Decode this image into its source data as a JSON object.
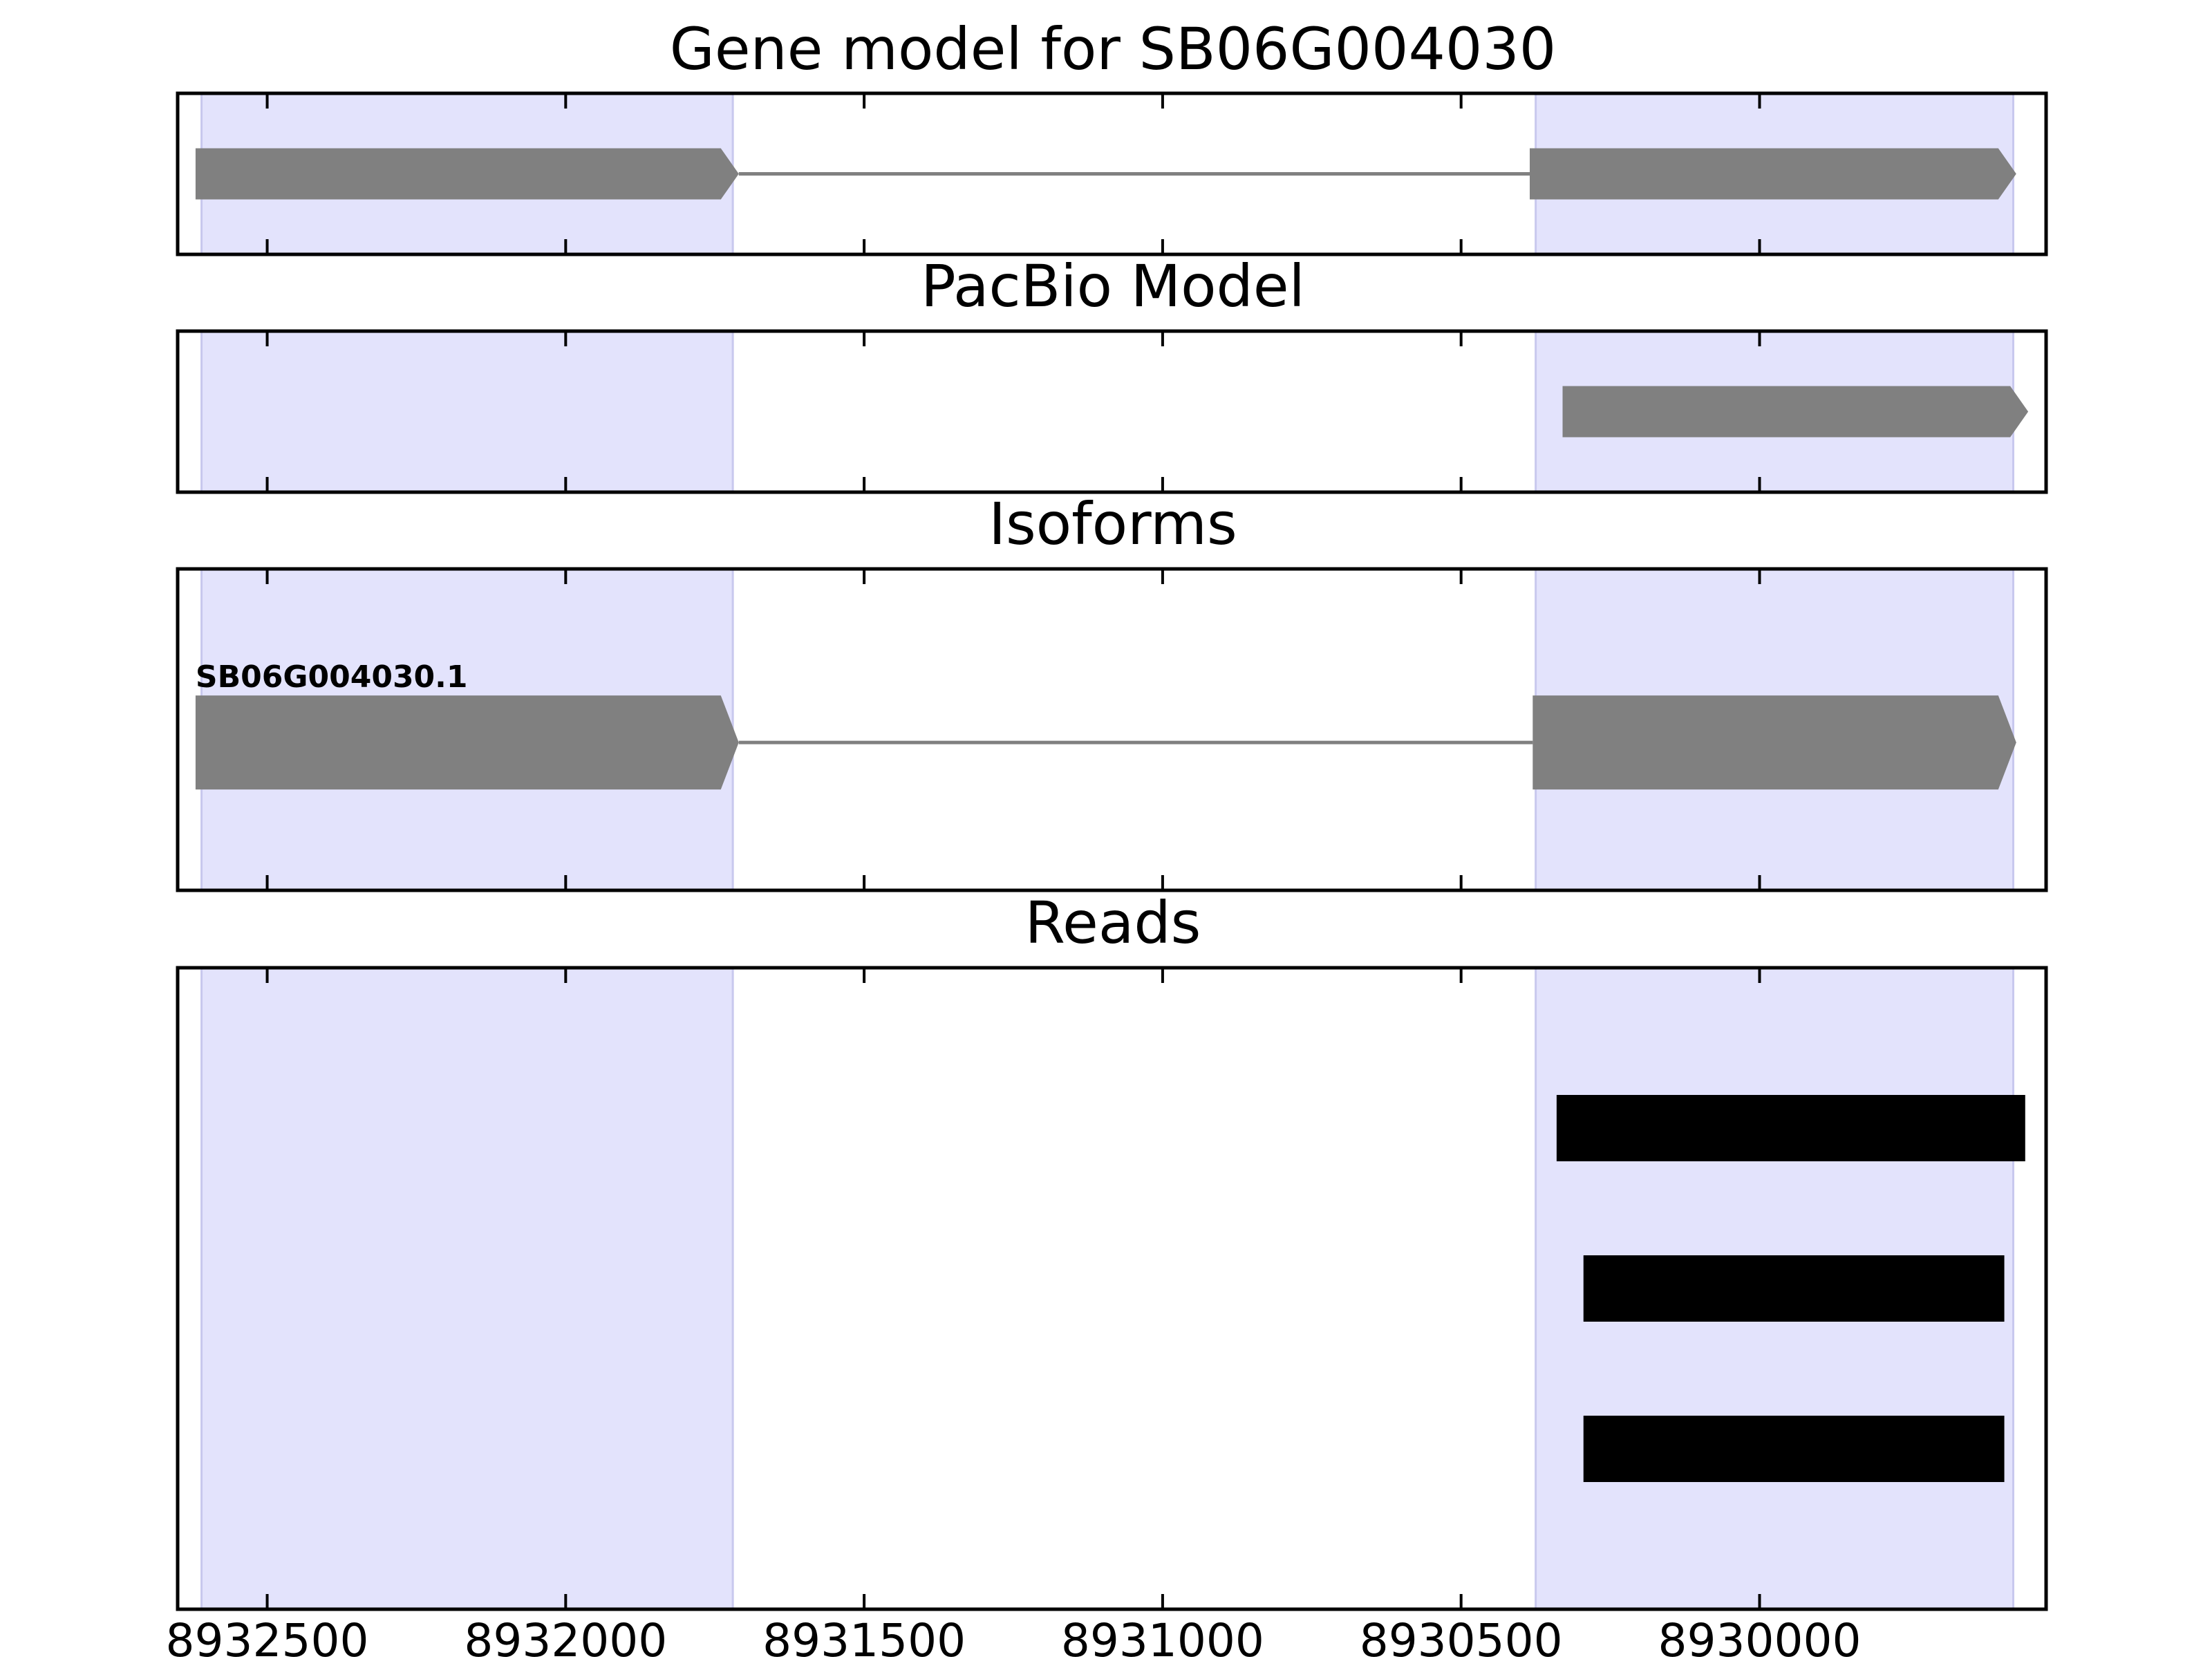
{
  "chart_data": {
    "type": "gene-track",
    "x_axis": {
      "ticks": [
        8932500,
        8932000,
        8931500,
        8931000,
        8930500,
        8930000
      ],
      "tick_labels": [
        "8932500",
        "8932000",
        "8931500",
        "8931000",
        "8930500",
        "8930000"
      ],
      "xlim": [
        8932650,
        8929520
      ],
      "reversed": true
    },
    "shaded_regions": [
      {
        "start": 8932610,
        "end": 8931720
      },
      {
        "start": 8930375,
        "end": 8929575
      }
    ],
    "colors": {
      "shade": "#e3e3fc",
      "feature": "#808080",
      "read": "#000000",
      "frame": "#000000"
    },
    "panels": [
      {
        "id": "gene-model",
        "title": "Gene model for SB06G004030",
        "strand": "-",
        "introns": [
          {
            "from": 8931710,
            "to": 8930385
          }
        ],
        "exons": [
          {
            "start": 8932620,
            "end": 8931710
          },
          {
            "start": 8930385,
            "end": 8929570
          }
        ]
      },
      {
        "id": "pacbio-model",
        "title": "PacBio Model",
        "strand": "-",
        "exons": [
          {
            "start": 8930330,
            "end": 8929550
          }
        ]
      },
      {
        "id": "isoforms",
        "title": "Isoforms",
        "strand": "-",
        "label": "SB06G004030.1",
        "introns": [
          {
            "from": 8931710,
            "to": 8930380
          }
        ],
        "exons": [
          {
            "start": 8932620,
            "end": 8931710
          },
          {
            "start": 8930380,
            "end": 8929570
          }
        ]
      },
      {
        "id": "reads",
        "title": "Reads",
        "reads": [
          {
            "start": 8930340,
            "end": 8929555
          },
          {
            "start": 8930295,
            "end": 8929590
          },
          {
            "start": 8930295,
            "end": 8929590
          }
        ]
      }
    ]
  }
}
